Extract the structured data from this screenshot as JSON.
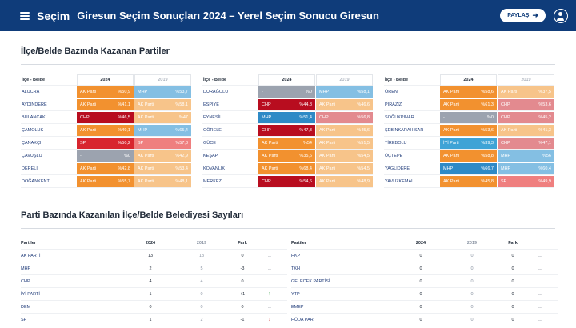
{
  "header": {
    "brand": "Seçim",
    "title": "Giresun Seçim Sonuçları 2024 – Yerel Seçim Sonucu Giresun",
    "share_label": "PAYLAŞ",
    "share_icon": "arrow-right-icon",
    "user_icon": "user-icon"
  },
  "section1": {
    "title": "İlçe/Belde Bazında Kazanan Partiler",
    "col_name": "İlçe - Belde",
    "col_2024": "2024",
    "col_2019": "2019"
  },
  "colors": {
    "AK Parti": "#f2912f",
    "CHP": "#b80d1f",
    "MHP": "#2e8ac6",
    "SP": "#d8252e",
    "İYİ Parti": "#3fa3d6",
    "-": "#9ca3af",
    "AK Parti_19": "#f7c48a",
    "CHP_19": "#e38a8f",
    "MHP_19": "#84bfe3",
    "SP_19": "#ef7f7f",
    "-_19": "#c8ccd2"
  },
  "districts": [
    [
      {
        "name": "ALUCRA",
        "p24": "AK Parti",
        "v24": "%50,9",
        "p19": "MHP",
        "v19": "%53,7"
      },
      {
        "name": "AYDINDERE",
        "p24": "AK Parti",
        "v24": "%41,1",
        "p19": "AK Parti",
        "v19": "%58,1"
      },
      {
        "name": "BULANCAK",
        "p24": "CHP",
        "v24": "%46,5",
        "p19": "AK Parti",
        "v19": "%47"
      },
      {
        "name": "ÇAMOLUK",
        "p24": "AK Parti",
        "v24": "%49,1",
        "p19": "MHP",
        "v19": "%65,4"
      },
      {
        "name": "ÇANAKÇI",
        "p24": "SP",
        "v24": "%50,2",
        "p19": "SP",
        "v19": "%57,8"
      },
      {
        "name": "ÇAVUŞLU",
        "p24": "-",
        "v24": "%0",
        "p19": "AK Parti",
        "v19": "%42,9"
      },
      {
        "name": "DERELİ",
        "p24": "AK Parti",
        "v24": "%42,8",
        "p19": "AK Parti",
        "v19": "%53,4"
      },
      {
        "name": "DOĞANKENT",
        "p24": "AK Parti",
        "v24": "%55,7",
        "p19": "AK Parti",
        "v19": "%48,1"
      }
    ],
    [
      {
        "name": "DURAĞOLU",
        "p24": "-",
        "v24": "%0",
        "p19": "MHP",
        "v19": "%58,1"
      },
      {
        "name": "ESPİYE",
        "p24": "CHP",
        "v24": "%44,8",
        "p19": "AK Parti",
        "v19": "%46,6"
      },
      {
        "name": "EYNESİL",
        "p24": "MHP",
        "v24": "%51,4",
        "p19": "CHP",
        "v19": "%56,8"
      },
      {
        "name": "GÖRELE",
        "p24": "CHP",
        "v24": "%47,3",
        "p19": "AK Parti",
        "v19": "%45,6"
      },
      {
        "name": "GÜCE",
        "p24": "AK Parti",
        "v24": "%54",
        "p19": "AK Parti",
        "v19": "%51,5"
      },
      {
        "name": "KEŞAP",
        "p24": "AK Parti",
        "v24": "%35,6",
        "p19": "AK Parti",
        "v19": "%54,5"
      },
      {
        "name": "KOVANLIK",
        "p24": "AK Parti",
        "v24": "%68,4",
        "p19": "AK Parti",
        "v19": "%54,5"
      },
      {
        "name": "MERKEZ",
        "p24": "CHP",
        "v24": "%54,6",
        "p19": "AK Parti",
        "v19": "%48,9"
      }
    ],
    [
      {
        "name": "ÖREN",
        "p24": "AK Parti",
        "v24": "%58,6",
        "p19": "AK Parti",
        "v19": "%37,5"
      },
      {
        "name": "PİRAZİZ",
        "p24": "AK Parti",
        "v24": "%61,3",
        "p19": "CHP",
        "v19": "%53,6"
      },
      {
        "name": "SOĞUKPINAR",
        "p24": "-",
        "v24": "%0",
        "p19": "CHP",
        "v19": "%45,2"
      },
      {
        "name": "ŞEBİNKARAHİSAR",
        "p24": "AK Parti",
        "v24": "%53,6",
        "p19": "AK Parti",
        "v19": "%41,3"
      },
      {
        "name": "TİREBOLU",
        "p24": "İYİ Parti",
        "v24": "%39,3",
        "p19": "CHP",
        "v19": "%47,1"
      },
      {
        "name": "ÜÇTEPE",
        "p24": "AK Parti",
        "v24": "%58,8",
        "p19": "MHP",
        "v19": "%56"
      },
      {
        "name": "YAĞLIDERE",
        "p24": "MHP",
        "v24": "%66,7",
        "p19": "MHP",
        "v19": "%60,4"
      },
      {
        "name": "YAVUZKEMAL",
        "p24": "AK Parti",
        "v24": "%45,8",
        "p19": "SP",
        "v19": "%49,9"
      }
    ]
  ],
  "section2": {
    "title": "Parti Bazında Kazanılan İlçe/Belde Belediyesi Sayıları",
    "col_party": "Partiler",
    "col_2024": "2024",
    "col_2019": "2019",
    "col_fark": "Fark"
  },
  "parties": [
    [
      {
        "name": "AK PARTİ",
        "y24": "13",
        "y19": "13",
        "fark": "0",
        "trend": "..",
        "dir": "none"
      },
      {
        "name": "MHP",
        "y24": "2",
        "y19": "5",
        "fark": "-3",
        "trend": "..",
        "dir": "none"
      },
      {
        "name": "CHP",
        "y24": "4",
        "y19": "4",
        "fark": "0",
        "trend": "..",
        "dir": "none"
      },
      {
        "name": "İYİ PARTİ",
        "y24": "1",
        "y19": "0",
        "fark": "+1",
        "trend": "↑",
        "dir": "up"
      },
      {
        "name": "DEM",
        "y24": "0",
        "y19": "0",
        "fark": "0",
        "trend": "..",
        "dir": "none"
      },
      {
        "name": "SP",
        "y24": "1",
        "y19": "2",
        "fark": "-1",
        "trend": "↓",
        "dir": "down"
      }
    ],
    [
      {
        "name": "HKP",
        "y24": "0",
        "y19": "0",
        "fark": "0",
        "trend": "..",
        "dir": "none"
      },
      {
        "name": "TKH",
        "y24": "0",
        "y19": "0",
        "fark": "0",
        "trend": "..",
        "dir": "none"
      },
      {
        "name": "GELECEK PARTİSİ",
        "y24": "0",
        "y19": "0",
        "fark": "0",
        "trend": "..",
        "dir": "none"
      },
      {
        "name": "YTP",
        "y24": "0",
        "y19": "0",
        "fark": "0",
        "trend": "..",
        "dir": "none"
      },
      {
        "name": "EMEP",
        "y24": "0",
        "y19": "0",
        "fark": "0",
        "trend": "..",
        "dir": "none"
      },
      {
        "name": "HÜDA PAR",
        "y24": "0",
        "y19": "0",
        "fark": "0",
        "trend": "..",
        "dir": "none"
      }
    ]
  ]
}
